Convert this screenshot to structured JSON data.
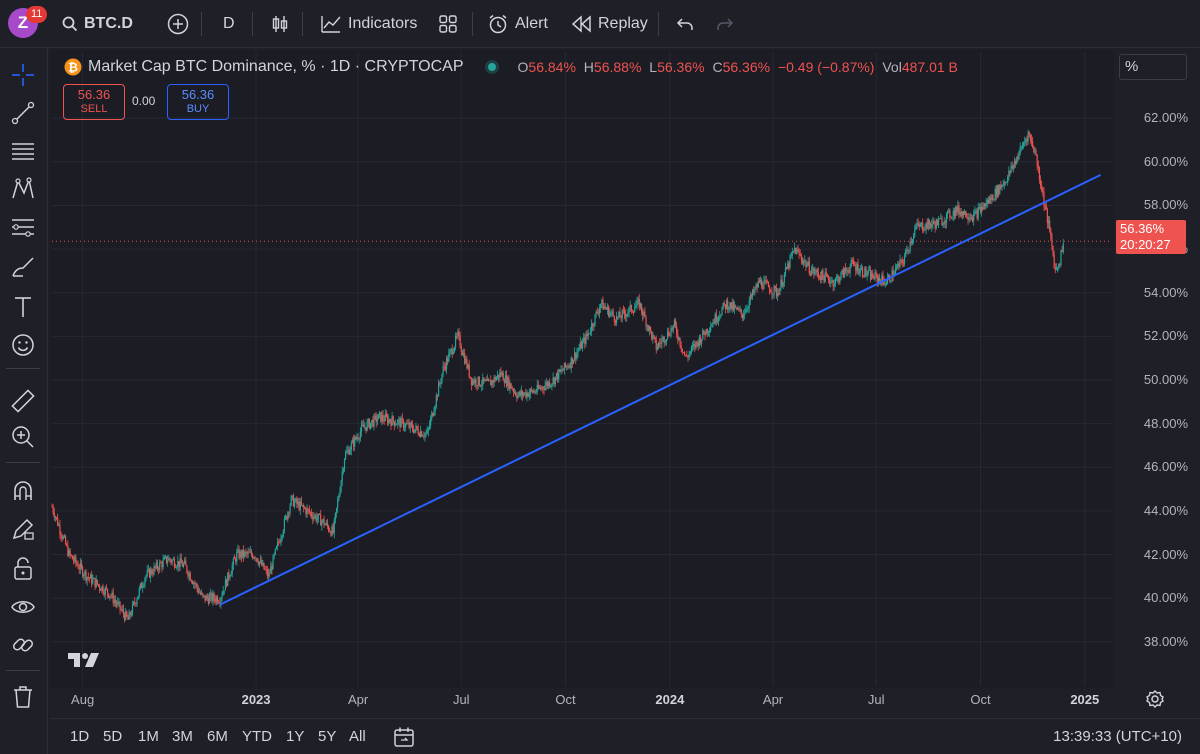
{
  "topbar": {
    "avatar_letter": "Z",
    "notification_count": "11",
    "symbol": "BTC.D",
    "interval": "D",
    "indicators_label": "Indicators",
    "alert_label": "Alert",
    "replay_label": "Replay"
  },
  "legend": {
    "title": "Market Cap BTC Dominance, % · 1D · CRYPTOCAP",
    "open_label": "O",
    "open": "56.84%",
    "high_label": "H",
    "high": "56.88%",
    "low_label": "L",
    "low": "56.36%",
    "close_label": "C",
    "close": "56.36%",
    "change": "−0.49 (−0.87%)",
    "vol_label": "Vol",
    "vol": "487.01 B"
  },
  "trade": {
    "sell_price": "56.36",
    "sell_label": "SELL",
    "spread": "0.00",
    "buy_price": "56.36",
    "buy_label": "BUY"
  },
  "scale_mode": "%",
  "price_tag": {
    "price": "56.36%",
    "countdown": "20:20:27"
  },
  "bottombar": {
    "ranges": [
      "1D",
      "5D",
      "1M",
      "3M",
      "6M",
      "YTD",
      "1Y",
      "5Y",
      "All"
    ],
    "clock": "13:39:33 (UTC+10)"
  },
  "colors": {
    "up": "#26a69a",
    "down": "#ef5350",
    "trendline": "#2962ff",
    "background": "#1b1c24"
  },
  "chart_data": {
    "type": "candlestick",
    "title": "Market Cap BTC Dominance, % · 1D · CRYPTOCAP",
    "y_unit": "%",
    "ylim": [
      36.8,
      63.2
    ],
    "y_ticks": [
      "62.00%",
      "60.00%",
      "58.00%",
      "56.00%",
      "54.00%",
      "52.00%",
      "50.00%",
      "48.00%",
      "46.00%",
      "44.00%",
      "42.00%",
      "40.00%",
      "38.00%"
    ],
    "x_ticks": [
      {
        "label": "Aug",
        "date": "2022-08-01",
        "major": false
      },
      {
        "label": "2023",
        "date": "2023-01-01",
        "major": true
      },
      {
        "label": "Apr",
        "date": "2023-04-01",
        "major": false
      },
      {
        "label": "Jul",
        "date": "2023-07-01",
        "major": false
      },
      {
        "label": "Oct",
        "date": "2023-10-01",
        "major": false
      },
      {
        "label": "2024",
        "date": "2024-01-01",
        "major": true
      },
      {
        "label": "Apr",
        "date": "2024-04-01",
        "major": false
      },
      {
        "label": "Jul",
        "date": "2024-07-01",
        "major": false
      },
      {
        "label": "Oct",
        "date": "2024-10-01",
        "major": false
      },
      {
        "label": "2025",
        "date": "2025-01-01",
        "major": true
      }
    ],
    "xlim": [
      "2022-07-05",
      "2025-01-25"
    ],
    "last_price": 56.36,
    "path": [
      [
        "2022-07-05",
        44.2
      ],
      [
        "2022-07-20",
        42.0
      ],
      [
        "2022-08-05",
        41.0
      ],
      [
        "2022-08-25",
        40.2
      ],
      [
        "2022-09-10",
        39.0
      ],
      [
        "2022-09-25",
        41.0
      ],
      [
        "2022-10-15",
        41.8
      ],
      [
        "2022-10-30",
        41.5
      ],
      [
        "2022-11-15",
        40.0
      ],
      [
        "2022-11-30",
        40.0
      ],
      [
        "2022-12-15",
        42.0
      ],
      [
        "2022-12-31",
        42.0
      ],
      [
        "2023-01-12",
        41.0
      ],
      [
        "2023-02-01",
        44.5
      ],
      [
        "2023-02-15",
        44.0
      ],
      [
        "2023-03-01",
        43.5
      ],
      [
        "2023-03-10",
        43.0
      ],
      [
        "2023-03-20",
        46.5
      ],
      [
        "2023-04-05",
        47.8
      ],
      [
        "2023-04-20",
        48.3
      ],
      [
        "2023-05-10",
        48.0
      ],
      [
        "2023-06-01",
        47.5
      ],
      [
        "2023-06-15",
        50.5
      ],
      [
        "2023-06-28",
        52.0
      ],
      [
        "2023-07-10",
        50.0
      ],
      [
        "2023-07-25",
        49.8
      ],
      [
        "2023-08-05",
        50.3
      ],
      [
        "2023-08-20",
        49.3
      ],
      [
        "2023-09-05",
        49.5
      ],
      [
        "2023-09-20",
        50.0
      ],
      [
        "2023-10-05",
        50.8
      ],
      [
        "2023-10-20",
        52.0
      ],
      [
        "2023-11-01",
        53.5
      ],
      [
        "2023-11-15",
        52.8
      ],
      [
        "2023-12-05",
        53.5
      ],
      [
        "2023-12-20",
        51.5
      ],
      [
        "2024-01-05",
        52.5
      ],
      [
        "2024-01-15",
        51.0
      ],
      [
        "2024-02-01",
        52.2
      ],
      [
        "2024-02-20",
        53.5
      ],
      [
        "2024-03-05",
        53.0
      ],
      [
        "2024-03-20",
        54.5
      ],
      [
        "2024-04-05",
        54.0
      ],
      [
        "2024-04-20",
        56.0
      ],
      [
        "2024-05-05",
        55.0
      ],
      [
        "2024-05-25",
        54.5
      ],
      [
        "2024-06-10",
        55.3
      ],
      [
        "2024-06-25",
        54.8
      ],
      [
        "2024-07-10",
        54.5
      ],
      [
        "2024-07-25",
        55.5
      ],
      [
        "2024-08-05",
        57.0
      ],
      [
        "2024-08-25",
        57.2
      ],
      [
        "2024-09-10",
        57.8
      ],
      [
        "2024-09-25",
        57.5
      ],
      [
        "2024-10-10",
        58.3
      ],
      [
        "2024-10-25",
        59.3
      ],
      [
        "2024-11-05",
        60.5
      ],
      [
        "2024-11-12",
        61.3
      ],
      [
        "2024-11-18",
        60.5
      ],
      [
        "2024-11-25",
        58.5
      ],
      [
        "2024-12-02",
        56.5
      ],
      [
        "2024-12-06",
        55.0
      ],
      [
        "2024-12-10",
        55.5
      ],
      [
        "2024-12-13",
        56.36
      ]
    ],
    "trendline": {
      "start": {
        "date": "2022-11-30",
        "value": 39.7
      },
      "end": {
        "date": "2025-01-15",
        "value": 59.4
      }
    }
  }
}
